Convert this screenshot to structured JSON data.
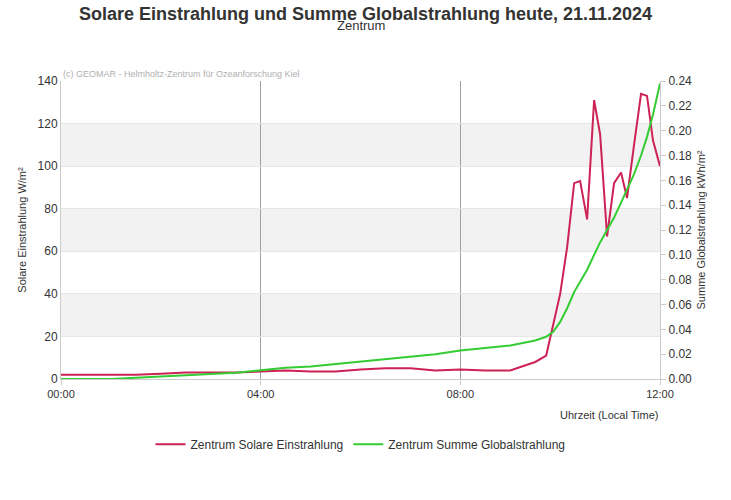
{
  "chart_data": {
    "type": "line",
    "title": "Solare Einstrahlung und Summe Globalstrahlung heute, 21.11.2024",
    "subtitle": "Zentrum",
    "annotations": [
      "(c) GEOMAR - Helmholtz-Zentrum für Ozeanforschung Kiel"
    ],
    "x_label": "Uhrzeit (Local Time)",
    "y_label": "Solare Einstrahlung W/m²",
    "y2_label": "Summe Globalstrahlung kWh/m²",
    "x": [
      0,
      0.5,
      1,
      1.5,
      2,
      2.5,
      3,
      3.5,
      4,
      4.5,
      5,
      5.5,
      6,
      6.5,
      7,
      7.5,
      8,
      8.5,
      9,
      9.25,
      9.5,
      9.72,
      9.86,
      10,
      10.14,
      10.28,
      10.4,
      10.54,
      10.68,
      10.8,
      10.94,
      11.08,
      11.22,
      11.34,
      11.48,
      11.62,
      11.74,
      11.86,
      12
    ],
    "series": [
      {
        "name": "Zentrum Solare Einstrahlung",
        "color": "#cc2255",
        "axis": "y",
        "values": [
          2,
          2,
          2,
          2,
          2.5,
          3,
          3,
          3,
          3.5,
          4,
          3.5,
          3.5,
          4.5,
          5,
          5,
          4,
          4.5,
          4,
          4,
          6,
          8,
          11,
          25,
          40,
          62,
          92,
          93,
          75,
          131,
          115,
          67,
          92,
          97,
          85,
          110,
          134,
          133,
          112,
          100
        ]
      },
      {
        "name": "Zentrum Summe Globalstrahlung",
        "color": "#33cc33",
        "axis": "y2",
        "values": [
          0,
          0,
          0,
          0.001,
          0.002,
          0.003,
          0.004,
          0.005,
          0.007,
          0.009,
          0.01,
          0.012,
          0.014,
          0.016,
          0.018,
          0.02,
          0.023,
          0.025,
          0.027,
          0.029,
          0.031,
          0.034,
          0.038,
          0.046,
          0.057,
          0.07,
          0.078,
          0.088,
          0.1,
          0.11,
          0.12,
          0.13,
          0.142,
          0.152,
          0.165,
          0.18,
          0.195,
          0.213,
          0.238
        ]
      }
    ],
    "xlim": [
      0,
      12
    ],
    "xticks": [
      {
        "value": 0,
        "label": "00:00"
      },
      {
        "value": 4,
        "label": "04:00"
      },
      {
        "value": 8,
        "label": "08:00"
      },
      {
        "value": 12,
        "label": "12:00"
      }
    ],
    "ylim": [
      0,
      140
    ],
    "yticks": [
      0,
      20,
      40,
      60,
      80,
      100,
      120,
      140
    ],
    "y2lim": [
      0,
      0.24
    ],
    "y2ticks": [
      {
        "value": 0,
        "label": "0.00"
      },
      {
        "value": 0.02,
        "label": "0.02"
      },
      {
        "value": 0.04,
        "label": "0.04"
      },
      {
        "value": 0.06,
        "label": "0.06"
      },
      {
        "value": 0.08,
        "label": "0.08"
      },
      {
        "value": 0.1,
        "label": "0.10"
      },
      {
        "value": 0.12,
        "label": "0.12"
      },
      {
        "value": 0.14,
        "label": "0.14"
      },
      {
        "value": 0.16,
        "label": "0.16"
      },
      {
        "value": 0.18,
        "label": "0.18"
      },
      {
        "value": 0.2,
        "label": "0.20"
      },
      {
        "value": 0.22,
        "label": "0.22"
      },
      {
        "value": 0.24,
        "label": "0.24"
      }
    ],
    "grid": true,
    "legend": "bottom"
  }
}
